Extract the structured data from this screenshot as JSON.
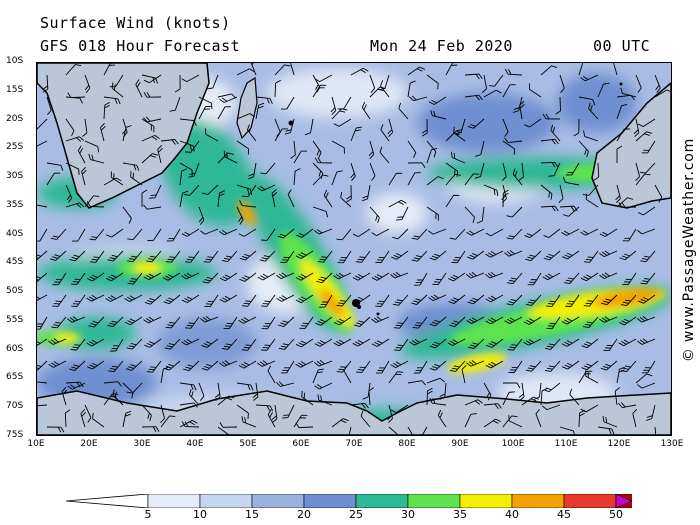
{
  "header": {
    "title": "Surface Wind (knots)",
    "subtitle": "GFS 018 Hour Forecast",
    "date": "Mon 24 Feb 2020",
    "time": "00 UTC"
  },
  "credit": "© www.PassageWeather.com",
  "map": {
    "lat_labels": [
      "10S",
      "15S",
      "20S",
      "25S",
      "30S",
      "35S",
      "40S",
      "45S",
      "50S",
      "55S",
      "60S",
      "65S",
      "70S",
      "75S"
    ],
    "lon_labels": [
      "10E",
      "20E",
      "30E",
      "40E",
      "50E",
      "60E",
      "70E",
      "80E",
      "90E",
      "100E",
      "110E",
      "120E",
      "130E"
    ],
    "lat_range": [
      -10,
      -75
    ],
    "lon_range": [
      10,
      130
    ],
    "land_color": "#b9c7d8",
    "coast_color": "#000000"
  },
  "legend": {
    "labels": [
      "5",
      "10",
      "15",
      "20",
      "25",
      "30",
      "35",
      "40",
      "45",
      "50"
    ],
    "colors": [
      "#e6ecf7",
      "#c8d5ee",
      "#9ab2dd",
      "#6f8fd0",
      "#2fb896",
      "#5ee34f",
      "#f3ef00",
      "#f5a200",
      "#e83a2c",
      "#b0000a",
      "#cc00cc"
    ],
    "unit": "knots"
  }
}
